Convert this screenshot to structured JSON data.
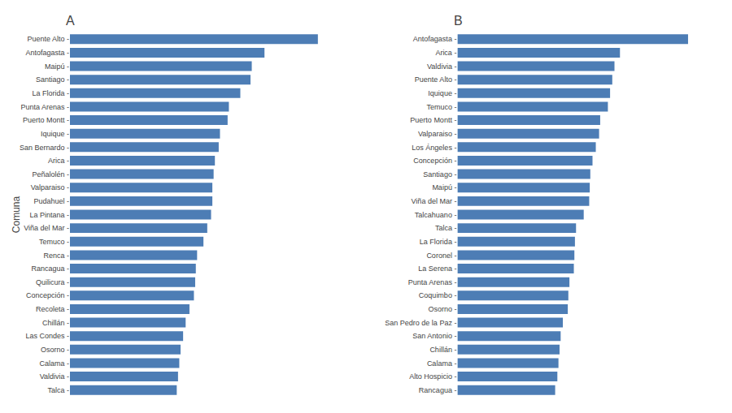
{
  "chart_data": [
    {
      "type": "bar",
      "orientation": "horizontal",
      "title": "A",
      "ylabel": "Comuna",
      "categories": [
        "Puente Alto -",
        "Antofagasta -",
        "Maipú -",
        "Santiago -",
        "La Florida -",
        "Punta Arenas -",
        "Puerto Montt -",
        "Iquique -",
        "San Bernardo -",
        "Arica -",
        "Peñalolén -",
        "Valparaiso -",
        "Pudahuel -",
        "La Pintana -",
        "Viña del Mar -",
        "Temuco -",
        "Renca -",
        "Rancagua -",
        "Quilicura -",
        "Concepción -",
        "Recoleta -",
        "Chillán -",
        "Las Condes -",
        "Osorno -",
        "Calama -",
        "Valdivia -",
        "Talca -"
      ],
      "values": [
        1950,
        1530,
        1430,
        1420,
        1340,
        1250,
        1240,
        1180,
        1170,
        1140,
        1130,
        1120,
        1120,
        1110,
        1080,
        1050,
        1000,
        990,
        985,
        975,
        940,
        910,
        890,
        870,
        860,
        850,
        840
      ],
      "color": "#4d7db5",
      "xlim": [
        0,
        2184
      ],
      "tick_labels": "y",
      "grid": false
    },
    {
      "type": "bar",
      "orientation": "horizontal",
      "title": "B",
      "categories": [
        "Antofagasta -",
        "Arica -",
        "Valdivia -",
        "Puente Alto -",
        "Iquique -",
        "Temuco -",
        "Puerto Montt -",
        "Valparaiso -",
        "Los Ángeles -",
        "Concepción -",
        "Santiago -",
        "Maipú -",
        "Viña del Mar -",
        "Talcahuano -",
        "Talca -",
        "La Florida -",
        "Coronel -",
        "La Serena -",
        "Punta Arenas -",
        "Coquimbo -",
        "Osorno -",
        "San Pedro de la Paz -",
        "San Antonio -",
        "Chillán -",
        "Calama -",
        "Alto Hospicio -",
        "Rancagua -"
      ],
      "values": [
        2100,
        1480,
        1430,
        1410,
        1390,
        1370,
        1300,
        1290,
        1260,
        1230,
        1210,
        1205,
        1200,
        1150,
        1080,
        1070,
        1065,
        1060,
        1020,
        1010,
        1005,
        960,
        940,
        930,
        920,
        910,
        890
      ],
      "color": "#4d7db5",
      "xlim": [
        0,
        2352
      ],
      "tick_labels": "y",
      "grid": false
    }
  ]
}
